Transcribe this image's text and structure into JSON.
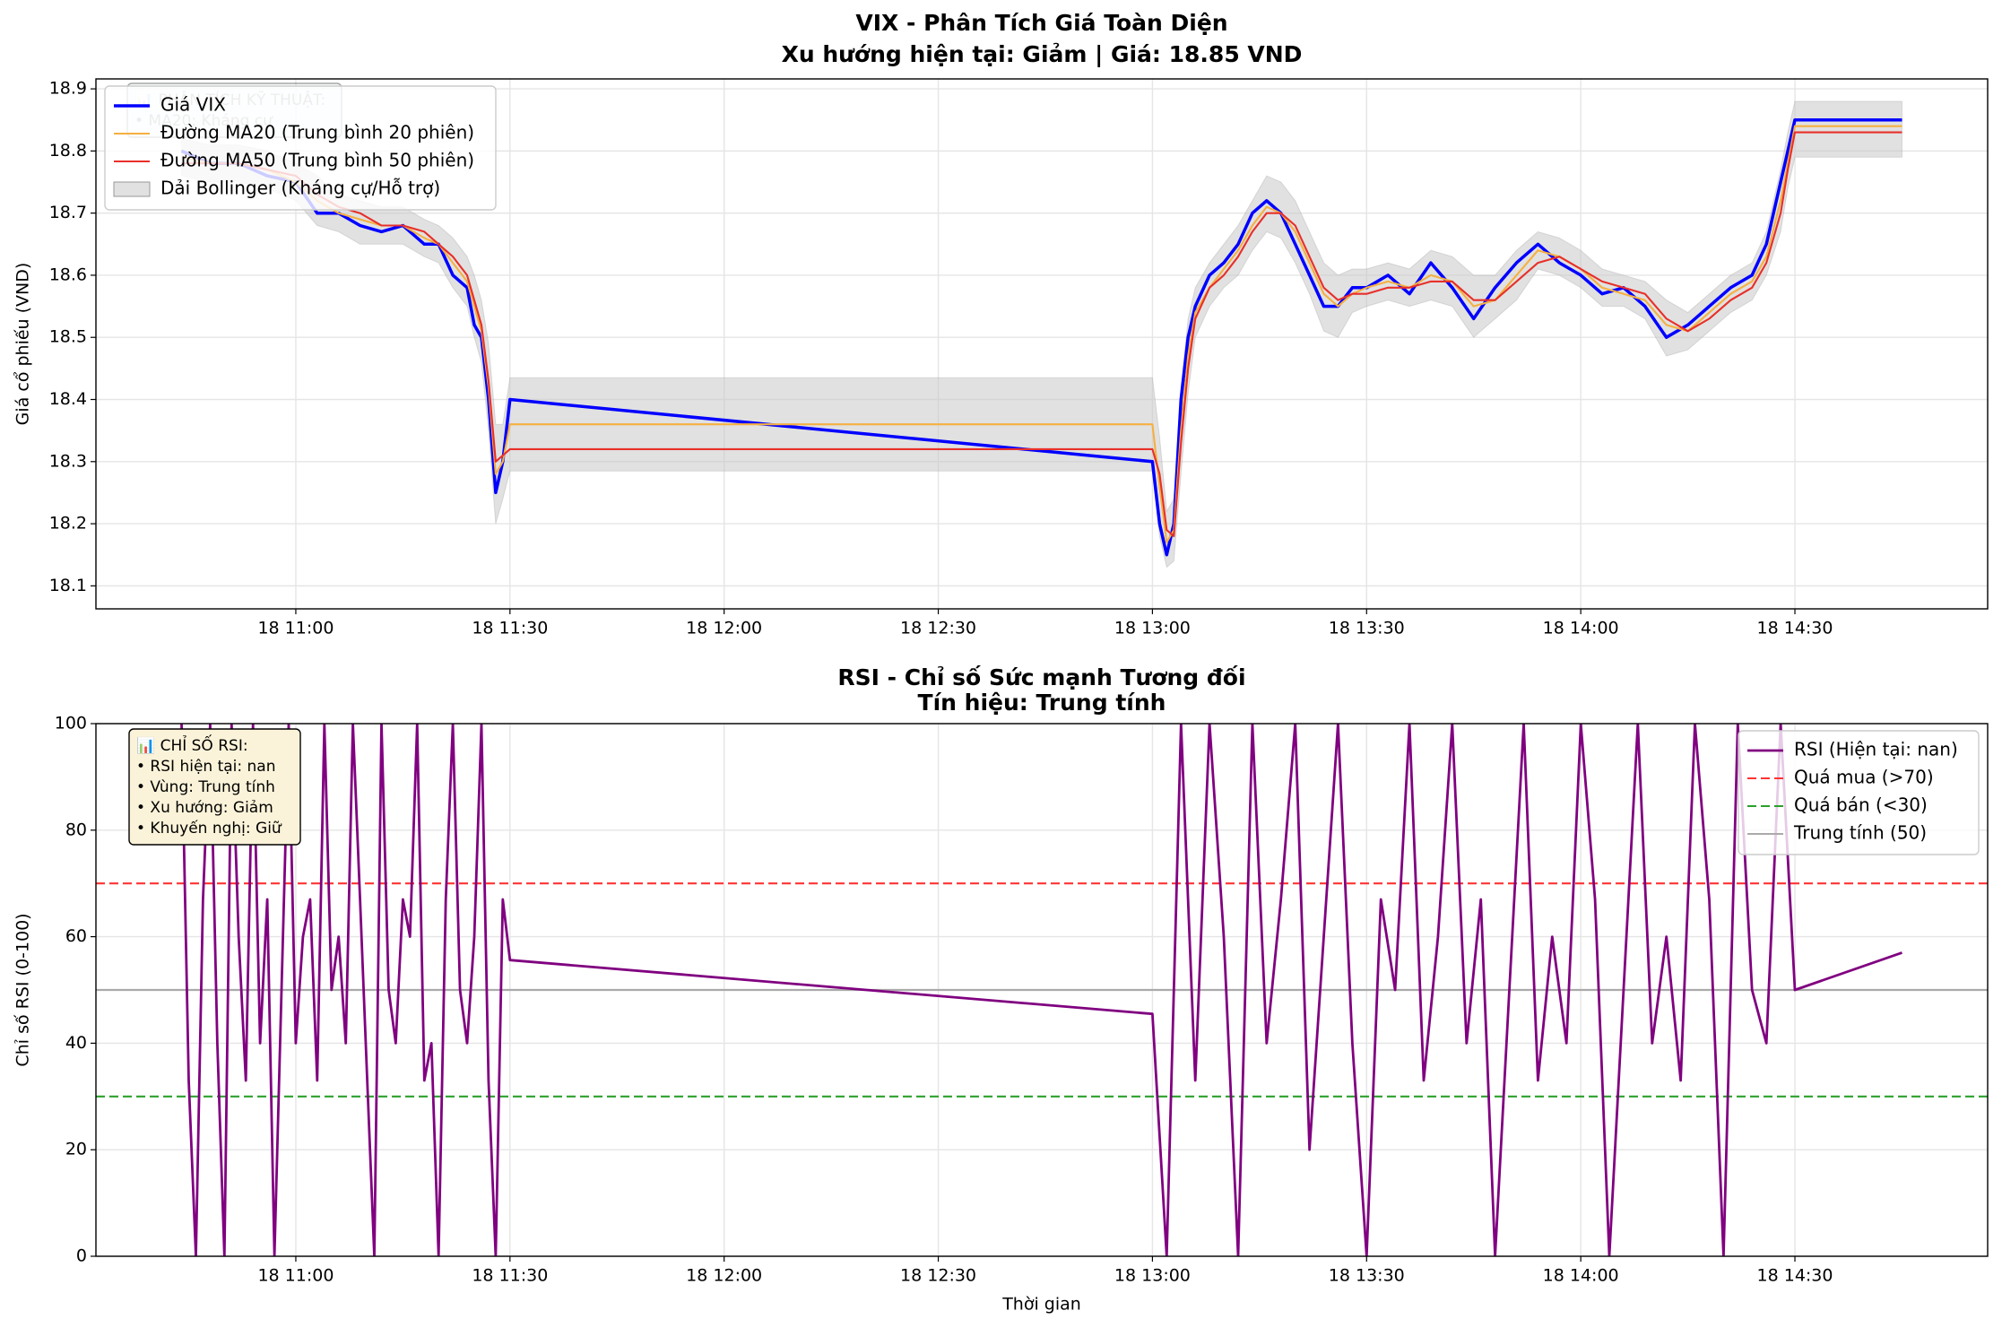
{
  "chart_data": [
    {
      "type": "line",
      "title": "VIX - Phân Tích Giá Toàn Diện",
      "subtitle": "Xu hướng hiện tại: Giảm | Giá: 18.85 VND",
      "ylabel": "Giá cổ phiếu (VND)",
      "x": [
        "18 10:44",
        "18 10:48",
        "18 10:52",
        "18 10:56",
        "18 11:00",
        "18 11:03",
        "18 11:06",
        "18 11:09",
        "18 11:12",
        "18 11:15",
        "18 11:18",
        "18 11:20",
        "18 11:22",
        "18 11:24",
        "18 11:25",
        "18 11:26",
        "18 11:27",
        "18 11:28",
        "18 11:29",
        "18 11:30",
        "18 13:00",
        "18 13:01",
        "18 13:02",
        "18 13:03",
        "18 13:04",
        "18 13:05",
        "18 13:06",
        "18 13:08",
        "18 13:10",
        "18 13:12",
        "18 13:14",
        "18 13:16",
        "18 13:18",
        "18 13:20",
        "18 13:22",
        "18 13:24",
        "18 13:26",
        "18 13:28",
        "18 13:30",
        "18 13:33",
        "18 13:36",
        "18 13:39",
        "18 13:42",
        "18 13:45",
        "18 13:48",
        "18 13:51",
        "18 13:54",
        "18 13:57",
        "18 14:00",
        "18 14:03",
        "18 14:06",
        "18 14:09",
        "18 14:12",
        "18 14:15",
        "18 14:18",
        "18 14:21",
        "18 14:24",
        "18 14:26",
        "18 14:28",
        "18 14:29",
        "18 14:30",
        "18 14:45"
      ],
      "series": [
        {
          "name": "Giá VIX",
          "color": "#0000ff",
          "width": 2.5,
          "values": [
            18.8,
            18.78,
            18.78,
            18.76,
            18.75,
            18.7,
            18.7,
            18.68,
            18.67,
            18.68,
            18.65,
            18.65,
            18.6,
            18.58,
            18.52,
            18.5,
            18.4,
            18.25,
            18.3,
            18.4,
            18.3,
            18.2,
            18.15,
            18.2,
            18.4,
            18.5,
            18.55,
            18.6,
            18.62,
            18.65,
            18.7,
            18.72,
            18.7,
            18.65,
            18.6,
            18.55,
            18.55,
            18.58,
            18.58,
            18.6,
            18.57,
            18.62,
            18.58,
            18.53,
            18.58,
            18.62,
            18.65,
            18.62,
            18.6,
            18.57,
            18.58,
            18.55,
            18.5,
            18.52,
            18.55,
            18.58,
            18.6,
            18.65,
            18.75,
            18.8,
            18.85,
            18.85
          ]
        },
        {
          "name": "Đường MA20 (Trung bình 20 phiên)",
          "color": "#f5b041",
          "width": 1.5,
          "values": [
            18.79,
            18.78,
            18.78,
            18.77,
            18.75,
            18.72,
            18.7,
            18.69,
            18.68,
            18.68,
            18.66,
            18.65,
            18.62,
            18.59,
            18.55,
            18.51,
            18.42,
            18.28,
            18.3,
            18.36,
            18.36,
            18.26,
            18.17,
            18.19,
            18.35,
            18.47,
            18.54,
            18.58,
            18.61,
            18.64,
            18.68,
            18.71,
            18.7,
            18.67,
            18.62,
            18.57,
            18.55,
            18.57,
            18.58,
            18.59,
            18.58,
            18.6,
            18.59,
            18.55,
            18.56,
            18.6,
            18.64,
            18.63,
            18.61,
            18.58,
            18.57,
            18.56,
            18.52,
            18.51,
            18.54,
            18.57,
            18.59,
            18.63,
            18.72,
            18.78,
            18.84,
            18.84
          ]
        },
        {
          "name": "Đường MA50 (Trung bình 50 phiên)",
          "color": "#e8302a",
          "width": 1.5,
          "values": [
            18.78,
            18.78,
            18.78,
            18.77,
            18.76,
            18.73,
            18.71,
            18.7,
            18.68,
            18.68,
            18.67,
            18.65,
            18.63,
            18.6,
            18.56,
            18.52,
            18.43,
            18.3,
            18.31,
            18.32,
            18.32,
            18.28,
            18.19,
            18.18,
            18.33,
            18.45,
            18.53,
            18.58,
            18.6,
            18.63,
            18.67,
            18.7,
            18.7,
            18.68,
            18.63,
            18.58,
            18.56,
            18.57,
            18.57,
            18.58,
            18.58,
            18.59,
            18.59,
            18.56,
            18.56,
            18.59,
            18.62,
            18.63,
            18.61,
            18.59,
            18.58,
            18.57,
            18.53,
            18.51,
            18.53,
            18.56,
            18.58,
            18.62,
            18.7,
            18.77,
            18.83,
            18.83
          ]
        }
      ],
      "band": {
        "name": "Dải Bollinger (Kháng cự/Hỗ trợ)",
        "color": "#c8c8c8",
        "lower": [
          18.76,
          18.75,
          18.75,
          18.74,
          18.72,
          18.68,
          18.67,
          18.65,
          18.65,
          18.65,
          18.63,
          18.62,
          18.58,
          18.55,
          18.5,
          18.46,
          18.35,
          18.2,
          18.24,
          18.285,
          18.285,
          18.18,
          18.13,
          18.14,
          18.28,
          18.41,
          18.5,
          18.55,
          18.58,
          18.6,
          18.64,
          18.67,
          18.66,
          18.62,
          18.57,
          18.51,
          18.5,
          18.54,
          18.55,
          18.56,
          18.55,
          18.56,
          18.55,
          18.5,
          18.53,
          18.56,
          18.61,
          18.6,
          18.58,
          18.55,
          18.55,
          18.53,
          18.47,
          18.48,
          18.51,
          18.54,
          18.56,
          18.6,
          18.67,
          18.74,
          18.79,
          18.79
        ],
        "upper": [
          18.82,
          18.81,
          18.81,
          18.8,
          18.78,
          18.76,
          18.73,
          18.72,
          18.71,
          18.71,
          18.69,
          18.68,
          18.66,
          18.63,
          18.6,
          18.56,
          18.49,
          18.36,
          18.36,
          18.435,
          18.435,
          18.34,
          18.22,
          18.24,
          18.42,
          18.53,
          18.58,
          18.62,
          18.65,
          18.68,
          18.72,
          18.76,
          18.75,
          18.72,
          18.67,
          18.62,
          18.6,
          18.61,
          18.61,
          18.62,
          18.61,
          18.64,
          18.63,
          18.6,
          18.6,
          18.64,
          18.67,
          18.66,
          18.64,
          18.61,
          18.6,
          18.59,
          18.56,
          18.54,
          18.57,
          18.6,
          18.62,
          18.67,
          18.77,
          18.83,
          18.88,
          18.88
        ]
      },
      "xlim": [
        "18 10:32",
        "18 14:57"
      ],
      "xticks": [
        "18 11:00",
        "18 11:30",
        "18 12:00",
        "18 12:30",
        "18 13:00",
        "18 13:30",
        "18 14:00",
        "18 14:30"
      ],
      "ylim": [
        18.063,
        18.916
      ],
      "yticks": [
        18.1,
        18.2,
        18.3,
        18.4,
        18.5,
        18.6,
        18.7,
        18.8,
        18.9
      ],
      "grid": true,
      "legend": "upper left",
      "annotation": {
        "lines": [
          "📊 PHÂN TÍCH KỸ THUẬT:",
          "• MA20: Kháng cự"
        ],
        "color": "#e6f2f7"
      }
    },
    {
      "type": "line",
      "title": "RSI - Chỉ số Sức mạnh Tương đối",
      "subtitle": "Tín hiệu: Trung tính",
      "ylabel": "Chỉ số RSI (0-100)",
      "xlabel": "Thời gian",
      "x": [
        "18 10:44",
        "18 10:45",
        "18 10:46",
        "18 10:47",
        "18 10:48",
        "18 10:49",
        "18 10:50",
        "18 10:51",
        "18 10:52",
        "18 10:53",
        "18 10:54",
        "18 10:55",
        "18 10:56",
        "18 10:57",
        "18 10:58",
        "18 10:59",
        "18 11:00",
        "18 11:01",
        "18 11:02",
        "18 11:03",
        "18 11:04",
        "18 11:05",
        "18 11:06",
        "18 11:07",
        "18 11:08",
        "18 11:09",
        "18 11:10",
        "18 11:11",
        "18 11:12",
        "18 11:13",
        "18 11:14",
        "18 11:15",
        "18 11:16",
        "18 11:17",
        "18 11:18",
        "18 11:19",
        "18 11:20",
        "18 11:21",
        "18 11:22",
        "18 11:23",
        "18 11:24",
        "18 11:25",
        "18 11:26",
        "18 11:27",
        "18 11:28",
        "18 11:29",
        "18 11:30",
        "18 13:00",
        "18 13:02",
        "18 13:04",
        "18 13:06",
        "18 13:08",
        "18 13:10",
        "18 13:12",
        "18 13:14",
        "18 13:16",
        "18 13:18",
        "18 13:20",
        "18 13:22",
        "18 13:24",
        "18 13:26",
        "18 13:28",
        "18 13:30",
        "18 13:32",
        "18 13:34",
        "18 13:36",
        "18 13:38",
        "18 13:40",
        "18 13:42",
        "18 13:44",
        "18 13:46",
        "18 13:48",
        "18 13:50",
        "18 13:52",
        "18 13:54",
        "18 13:56",
        "18 13:58",
        "18 14:00",
        "18 14:02",
        "18 14:04",
        "18 14:06",
        "18 14:08",
        "18 14:10",
        "18 14:12",
        "18 14:14",
        "18 14:16",
        "18 14:18",
        "18 14:20",
        "18 14:22",
        "18 14:24",
        "18 14:26",
        "18 14:28",
        "18 14:30",
        "18 14:45"
      ],
      "series": [
        {
          "name": "RSI (Hiện tại: nan)",
          "color": "#800080",
          "width": 2,
          "values": [
            100,
            33,
            0,
            67,
            100,
            40,
            0,
            100,
            60,
            33,
            100,
            40,
            67,
            0,
            50,
            100,
            40,
            60,
            67,
            33,
            100,
            50,
            60,
            40,
            100,
            67,
            33,
            0,
            100,
            50,
            40,
            67,
            60,
            100,
            33,
            40,
            0,
            67,
            100,
            50,
            40,
            60,
            100,
            33,
            0,
            67,
            55.6,
            45.5,
            0,
            100,
            33,
            100,
            60,
            0,
            100,
            40,
            67,
            100,
            20,
            60,
            100,
            40,
            0,
            67,
            50,
            100,
            33,
            60,
            100,
            40,
            67,
            0,
            50,
            100,
            33,
            60,
            40,
            100,
            67,
            0,
            50,
            100,
            40,
            60,
            33,
            100,
            67,
            0,
            100,
            50,
            40,
            100,
            50,
            57
          ]
        }
      ],
      "hlines": [
        {
          "name": "Quá mua (>70)",
          "color": "#ff3333",
          "value": 70,
          "dashed": true
        },
        {
          "name": "Quá bán (<30)",
          "color": "#2ca02c",
          "value": 30,
          "dashed": true
        },
        {
          "name": "Trung tính (50)",
          "color": "#aaaaaa",
          "value": 50,
          "dashed": false
        }
      ],
      "xlim": [
        "18 10:32",
        "18 14:57"
      ],
      "xticks": [
        "18 11:00",
        "18 11:30",
        "18 12:00",
        "18 12:30",
        "18 13:00",
        "18 13:30",
        "18 14:00",
        "18 14:30"
      ],
      "ylim": [
        0,
        100
      ],
      "yticks": [
        0,
        20,
        40,
        60,
        80,
        100
      ],
      "grid": true,
      "legend": "upper right",
      "annotation": {
        "lines": [
          "📊 CHỈ SỐ RSI:",
          "• RSI hiện tại: nan",
          "• Vùng: Trung tính",
          "• Xu hướng: Giảm",
          "• Khuyến nghị: Giữ"
        ],
        "color": "#fbf3d9"
      }
    }
  ]
}
